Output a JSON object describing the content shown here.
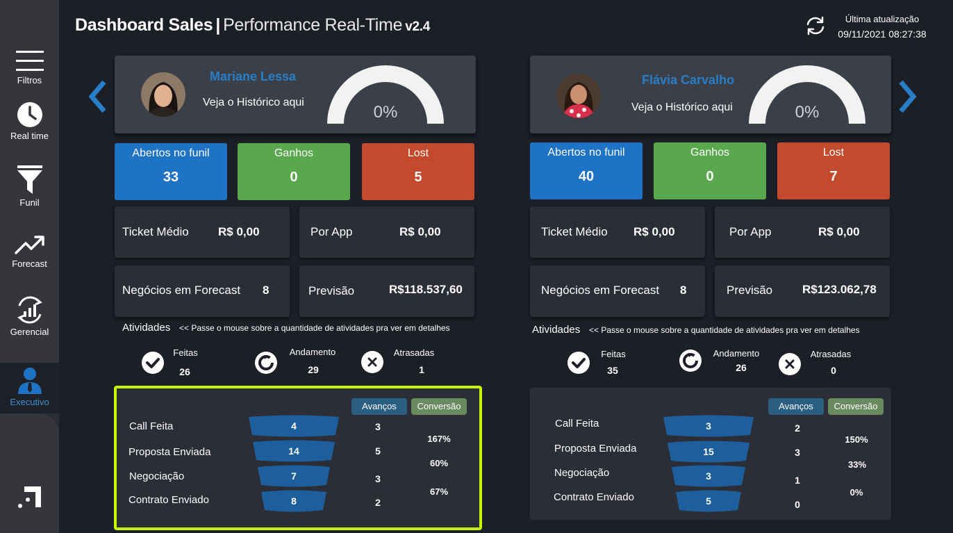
{
  "header": {
    "title_main": "Dashboard Sales",
    "title_sep": "|",
    "title_sub": "Performance Real-Time",
    "version": "v2.4",
    "update_label": "Última atualização",
    "update_time": "09/11/2021 08:27:38"
  },
  "sidebar": {
    "items": [
      {
        "label": "Filtros",
        "icon": "hamburger-menu-icon"
      },
      {
        "label": "Real time",
        "icon": "clock-icon"
      },
      {
        "label": "Funil",
        "icon": "funnel-icon"
      },
      {
        "label": "Forecast",
        "icon": "trend-up-icon"
      },
      {
        "label": "Gerencial",
        "icon": "chart-cycle-icon"
      },
      {
        "label": "Executivo",
        "icon": "user-tie-icon"
      }
    ],
    "active": "Executivo",
    "logo_icon": "brand-logo-icon"
  },
  "colors": {
    "accent_blue": "#1f73c4",
    "success_green": "#5aa84d",
    "danger_red": "#c34a2c",
    "highlight": "#c7f500"
  },
  "sellers": [
    {
      "name": "Mariane Lessa",
      "history_link": "Veja o Histórico aqui",
      "gauge_pct": "0%",
      "gauge_fraction": 0,
      "kpis": {
        "open_label": "Abertos no  funil",
        "open_value": "33",
        "won_label": "Ganhos",
        "won_value": "0",
        "lost_label": "Lost",
        "lost_value": "5"
      },
      "metrics": {
        "ticket_label": "Ticket Médio",
        "ticket_value": "R$ 0,00",
        "app_label": "Por App",
        "app_value": "R$ 0,00",
        "forecast_label": "Negócios em Forecast",
        "forecast_value": "8",
        "prev_label": "Previsão",
        "prev_value": "R$118.537,60"
      },
      "activities": {
        "title": "Atividades",
        "hint": "<< Passe o mouse sobre a quantidade de atividades  pra ver em detalhes",
        "done_label": "Feitas",
        "done_value": "26",
        "progress_label": "Andamento",
        "progress_value": "29",
        "late_label": "Atrasadas",
        "late_value": "1"
      },
      "funnel": {
        "advances_label": "Avanços",
        "conversion_label": "Conversão",
        "stages": [
          {
            "label": "Call Feita",
            "value": "4",
            "advances": "3"
          },
          {
            "label": "Proposta Enviada",
            "value": "14",
            "advances": "5"
          },
          {
            "label": "Negociação",
            "value": "7",
            "advances": "3"
          },
          {
            "label": "Contrato Enviado",
            "value": "8",
            "advances": "2"
          }
        ],
        "conversions": [
          "167%",
          "60%",
          "67%"
        ]
      }
    },
    {
      "name": "Flávia Carvalho",
      "history_link": "Veja o Histórico aqui",
      "gauge_pct": "0%",
      "gauge_fraction": 0,
      "kpis": {
        "open_label": "Abertos no  funil",
        "open_value": "40",
        "won_label": "Ganhos",
        "won_value": "0",
        "lost_label": "Lost",
        "lost_value": "7"
      },
      "metrics": {
        "ticket_label": "Ticket Médio",
        "ticket_value": "R$ 0,00",
        "app_label": "Por App",
        "app_value": "R$ 0,00",
        "forecast_label": "Negócios em Forecast",
        "forecast_value": "8",
        "prev_label": "Previsão",
        "prev_value": "R$123.062,78"
      },
      "activities": {
        "title": "Atividades",
        "hint": "<< Passe o mouse sobre a quantidade de atividades  pra ver em detalhes",
        "done_label": "Feitas",
        "done_value": "35",
        "progress_label": "Andamento",
        "progress_value": "26",
        "late_label": "Atrasadas",
        "late_value": "0"
      },
      "funnel": {
        "advances_label": "Avanços",
        "conversion_label": "Conversão",
        "stages": [
          {
            "label": "Call Feita",
            "value": "3",
            "advances": "2"
          },
          {
            "label": "Proposta Enviada",
            "value": "15",
            "advances": "3"
          },
          {
            "label": "Negociação",
            "value": "3",
            "advances": "1"
          },
          {
            "label": "Contrato Enviado",
            "value": "5",
            "advances": "0"
          }
        ],
        "conversions": [
          "150%",
          "33%",
          "0%"
        ]
      }
    }
  ]
}
